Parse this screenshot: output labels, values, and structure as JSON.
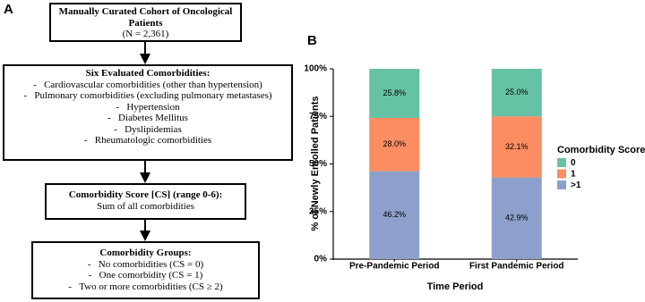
{
  "diagram": {
    "panel_label": "A",
    "boxes": [
      {
        "title": "Manually Curated Cohort of Oncological Patients",
        "lines": [
          "(N = 2,361)"
        ]
      },
      {
        "title": "Six Evaluated Comorbidities:",
        "items": [
          "Cardiovascular comorbidities (other than hypertension)",
          "Pulmonary comorbidities (excluding pulmonary metastases)",
          "Hypertension",
          "Diabetes Mellitus",
          "Dyslipidemias",
          "Rheumatologic comorbidities"
        ]
      },
      {
        "title": "Comorbidity Score [CS] (range 0-6):",
        "lines": [
          "Sum of all comorbidities"
        ]
      },
      {
        "title": "Comorbidity Groups:",
        "items": [
          "No comorbidities (CS = 0)",
          "One comorbidity (CS = 1)",
          "Two or more comorbidities (CS ≥ 2)"
        ]
      }
    ]
  },
  "chart_data": {
    "type": "stacked_bar",
    "panel_label": "B",
    "categories": [
      "Pre-Pandemic Period",
      "First Pandemic Period"
    ],
    "series": [
      {
        "name": "0",
        "color": "#66C2A5",
        "values": [
          25.8,
          25.0
        ],
        "value_labels": [
          "25.8%",
          "25.0%"
        ]
      },
      {
        "name": "1",
        "color": "#FC8D62",
        "values": [
          28.0,
          32.1
        ],
        "value_labels": [
          "28.0%",
          "32.1%"
        ]
      },
      {
        "name": ">1",
        "color": "#8DA0CB",
        "values": [
          46.2,
          42.9
        ],
        "value_labels": [
          "46.2%",
          "42.9%"
        ]
      }
    ],
    "ylim": [
      0,
      100
    ],
    "yticks": [
      {
        "value": 0,
        "label": "0%"
      },
      {
        "value": 25,
        "label": "25%"
      },
      {
        "value": 50,
        "label": "50%"
      },
      {
        "value": 75,
        "label": "75%"
      },
      {
        "value": 100,
        "label": "100%"
      }
    ],
    "ylabel": "% of Newly Enrolled Patients",
    "xlabel": "Time Period",
    "legend_title": "Comorbidity Score",
    "legend": "right",
    "grid": false
  }
}
